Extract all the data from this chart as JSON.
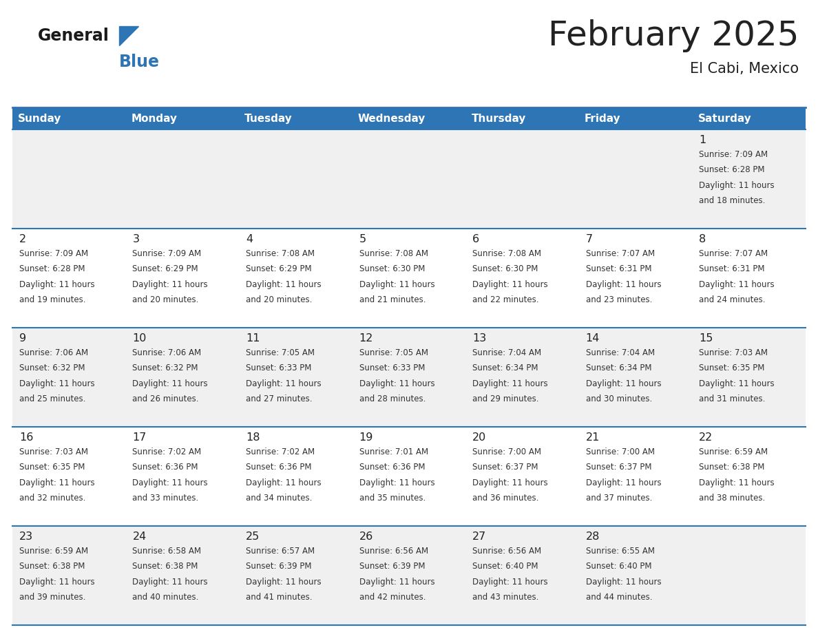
{
  "title": "February 2025",
  "subtitle": "El Cabi, Mexico",
  "header_color": "#2E75B6",
  "header_text_color": "#FFFFFF",
  "weekdays": [
    "Sunday",
    "Monday",
    "Tuesday",
    "Wednesday",
    "Thursday",
    "Friday",
    "Saturday"
  ],
  "bg_color": "#FFFFFF",
  "cell_alt_color": "#F0F0F0",
  "border_color": "#2E75B6",
  "day_num_color": "#222222",
  "info_color": "#333333",
  "logo_general_color": "#1a1a1a",
  "logo_blue_color": "#2E75B6",
  "days": [
    {
      "day": 1,
      "col": 6,
      "row": 0,
      "sunrise": "7:09 AM",
      "sunset": "6:28 PM",
      "daylight_suffix": "18 minutes."
    },
    {
      "day": 2,
      "col": 0,
      "row": 1,
      "sunrise": "7:09 AM",
      "sunset": "6:28 PM",
      "daylight_suffix": "19 minutes."
    },
    {
      "day": 3,
      "col": 1,
      "row": 1,
      "sunrise": "7:09 AM",
      "sunset": "6:29 PM",
      "daylight_suffix": "20 minutes."
    },
    {
      "day": 4,
      "col": 2,
      "row": 1,
      "sunrise": "7:08 AM",
      "sunset": "6:29 PM",
      "daylight_suffix": "20 minutes."
    },
    {
      "day": 5,
      "col": 3,
      "row": 1,
      "sunrise": "7:08 AM",
      "sunset": "6:30 PM",
      "daylight_suffix": "21 minutes."
    },
    {
      "day": 6,
      "col": 4,
      "row": 1,
      "sunrise": "7:08 AM",
      "sunset": "6:30 PM",
      "daylight_suffix": "22 minutes."
    },
    {
      "day": 7,
      "col": 5,
      "row": 1,
      "sunrise": "7:07 AM",
      "sunset": "6:31 PM",
      "daylight_suffix": "23 minutes."
    },
    {
      "day": 8,
      "col": 6,
      "row": 1,
      "sunrise": "7:07 AM",
      "sunset": "6:31 PM",
      "daylight_suffix": "24 minutes."
    },
    {
      "day": 9,
      "col": 0,
      "row": 2,
      "sunrise": "7:06 AM",
      "sunset": "6:32 PM",
      "daylight_suffix": "25 minutes."
    },
    {
      "day": 10,
      "col": 1,
      "row": 2,
      "sunrise": "7:06 AM",
      "sunset": "6:32 PM",
      "daylight_suffix": "26 minutes."
    },
    {
      "day": 11,
      "col": 2,
      "row": 2,
      "sunrise": "7:05 AM",
      "sunset": "6:33 PM",
      "daylight_suffix": "27 minutes."
    },
    {
      "day": 12,
      "col": 3,
      "row": 2,
      "sunrise": "7:05 AM",
      "sunset": "6:33 PM",
      "daylight_suffix": "28 minutes."
    },
    {
      "day": 13,
      "col": 4,
      "row": 2,
      "sunrise": "7:04 AM",
      "sunset": "6:34 PM",
      "daylight_suffix": "29 minutes."
    },
    {
      "day": 14,
      "col": 5,
      "row": 2,
      "sunrise": "7:04 AM",
      "sunset": "6:34 PM",
      "daylight_suffix": "30 minutes."
    },
    {
      "day": 15,
      "col": 6,
      "row": 2,
      "sunrise": "7:03 AM",
      "sunset": "6:35 PM",
      "daylight_suffix": "31 minutes."
    },
    {
      "day": 16,
      "col": 0,
      "row": 3,
      "sunrise": "7:03 AM",
      "sunset": "6:35 PM",
      "daylight_suffix": "32 minutes."
    },
    {
      "day": 17,
      "col": 1,
      "row": 3,
      "sunrise": "7:02 AM",
      "sunset": "6:36 PM",
      "daylight_suffix": "33 minutes."
    },
    {
      "day": 18,
      "col": 2,
      "row": 3,
      "sunrise": "7:02 AM",
      "sunset": "6:36 PM",
      "daylight_suffix": "34 minutes."
    },
    {
      "day": 19,
      "col": 3,
      "row": 3,
      "sunrise": "7:01 AM",
      "sunset": "6:36 PM",
      "daylight_suffix": "35 minutes."
    },
    {
      "day": 20,
      "col": 4,
      "row": 3,
      "sunrise": "7:00 AM",
      "sunset": "6:37 PM",
      "daylight_suffix": "36 minutes."
    },
    {
      "day": 21,
      "col": 5,
      "row": 3,
      "sunrise": "7:00 AM",
      "sunset": "6:37 PM",
      "daylight_suffix": "37 minutes."
    },
    {
      "day": 22,
      "col": 6,
      "row": 3,
      "sunrise": "6:59 AM",
      "sunset": "6:38 PM",
      "daylight_suffix": "38 minutes."
    },
    {
      "day": 23,
      "col": 0,
      "row": 4,
      "sunrise": "6:59 AM",
      "sunset": "6:38 PM",
      "daylight_suffix": "39 minutes."
    },
    {
      "day": 24,
      "col": 1,
      "row": 4,
      "sunrise": "6:58 AM",
      "sunset": "6:38 PM",
      "daylight_suffix": "40 minutes."
    },
    {
      "day": 25,
      "col": 2,
      "row": 4,
      "sunrise": "6:57 AM",
      "sunset": "6:39 PM",
      "daylight_suffix": "41 minutes."
    },
    {
      "day": 26,
      "col": 3,
      "row": 4,
      "sunrise": "6:56 AM",
      "sunset": "6:39 PM",
      "daylight_suffix": "42 minutes."
    },
    {
      "day": 27,
      "col": 4,
      "row": 4,
      "sunrise": "6:56 AM",
      "sunset": "6:40 PM",
      "daylight_suffix": "43 minutes."
    },
    {
      "day": 28,
      "col": 5,
      "row": 4,
      "sunrise": "6:55 AM",
      "sunset": "6:40 PM",
      "daylight_suffix": "44 minutes."
    }
  ]
}
